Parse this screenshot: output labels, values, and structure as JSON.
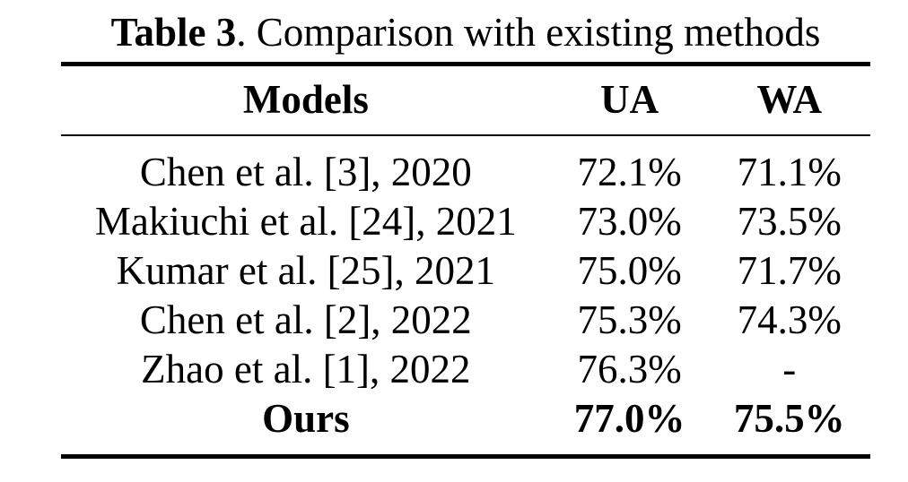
{
  "caption": {
    "bold": "Table 3",
    "rest": ". Comparison with existing methods"
  },
  "columns": [
    "Models",
    "UA",
    "WA"
  ],
  "rows": [
    {
      "model": "Chen et al. [3], 2020",
      "ua": "72.1%",
      "wa": "71.1%",
      "highlight": false
    },
    {
      "model": "Makiuchi et al. [24], 2021",
      "ua": "73.0%",
      "wa": "73.5%",
      "highlight": false
    },
    {
      "model": "Kumar et al. [25], 2021",
      "ua": "75.0%",
      "wa": "71.7%",
      "highlight": false
    },
    {
      "model": "Chen et al. [2], 2022",
      "ua": "75.3%",
      "wa": "74.3%",
      "highlight": false
    },
    {
      "model": "Zhao et al. [1], 2022",
      "ua": "76.3%",
      "wa": "-",
      "highlight": false
    },
    {
      "model": "Ours",
      "ua": "77.0%",
      "wa": "75.5%",
      "highlight": true
    }
  ],
  "colors": {
    "text": "#000000",
    "background": "#ffffff",
    "rule": "#000000"
  }
}
